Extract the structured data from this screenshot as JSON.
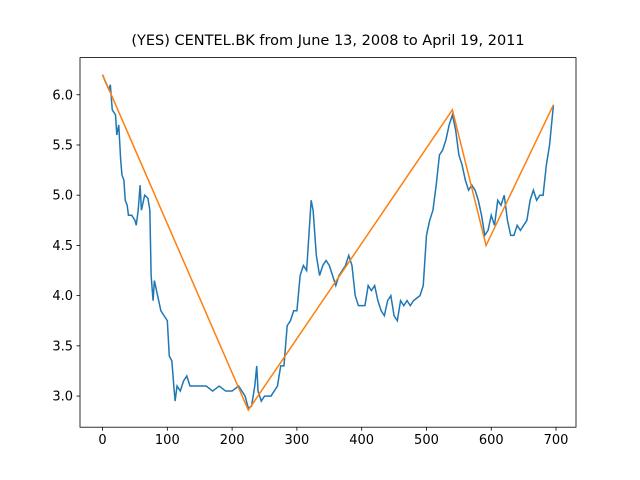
{
  "chart_data": {
    "type": "line",
    "title": "(YES) CENTEL.BK from June 13, 2008 to April 19, 2011",
    "xlim": [
      -34.8,
      730.8
    ],
    "ylim": [
      2.69,
      6.37
    ],
    "xticks": [
      0,
      100,
      200,
      300,
      400,
      500,
      600,
      700
    ],
    "yticks": [
      {
        "value": 3,
        "label": "3.0"
      },
      3.5,
      {
        "value": 4,
        "label": "4.0"
      },
      4.5,
      {
        "value": 5,
        "label": "5.0"
      },
      5.5,
      {
        "value": 6,
        "label": "6.0"
      }
    ],
    "series": [
      {
        "color": "#1f77b4",
        "x": [
          0,
          5,
          10,
          12,
          15,
          20,
          22,
          25,
          28,
          30,
          33,
          35,
          38,
          40,
          45,
          50,
          52,
          55,
          58,
          60,
          65,
          70,
          73,
          75,
          78,
          80,
          85,
          90,
          95,
          100,
          103,
          107,
          110,
          112,
          115,
          120,
          125,
          130,
          135,
          140,
          150,
          160,
          170,
          180,
          190,
          200,
          210,
          215,
          220,
          225,
          230,
          235,
          238,
          240,
          245,
          250,
          260,
          270,
          275,
          280,
          285,
          290,
          295,
          300,
          305,
          310,
          315,
          320,
          322,
          325,
          330,
          335,
          340,
          345,
          350,
          355,
          360,
          365,
          370,
          375,
          380,
          385,
          390,
          395,
          400,
          405,
          410,
          415,
          420,
          425,
          430,
          435,
          440,
          445,
          450,
          455,
          460,
          465,
          470,
          475,
          480,
          490,
          495,
          500,
          505,
          510,
          515,
          520,
          525,
          530,
          535,
          540,
          545,
          550,
          555,
          560,
          565,
          570,
          575,
          580,
          585,
          590,
          595,
          600,
          605,
          610,
          615,
          620,
          625,
          630,
          635,
          640,
          645,
          650,
          655,
          660,
          665,
          670,
          675,
          680,
          685,
          690,
          696
        ],
        "values": [
          6.2,
          6.12,
          6.05,
          6.1,
          5.85,
          5.8,
          5.6,
          5.7,
          5.35,
          5.2,
          5.15,
          4.95,
          4.9,
          4.8,
          4.8,
          4.75,
          4.7,
          4.85,
          5.1,
          4.85,
          5.0,
          4.97,
          4.85,
          4.2,
          3.95,
          4.15,
          4.0,
          3.85,
          3.8,
          3.75,
          3.4,
          3.35,
          3.1,
          2.95,
          3.1,
          3.05,
          3.15,
          3.2,
          3.1,
          3.1,
          3.1,
          3.1,
          3.05,
          3.1,
          3.05,
          3.05,
          3.1,
          3.05,
          3.0,
          2.88,
          2.9,
          3.1,
          3.3,
          3.05,
          2.95,
          3.0,
          3.0,
          3.1,
          3.3,
          3.3,
          3.7,
          3.75,
          3.85,
          3.85,
          4.2,
          4.3,
          4.25,
          4.75,
          4.95,
          4.85,
          4.4,
          4.2,
          4.3,
          4.35,
          4.3,
          4.2,
          4.1,
          4.2,
          4.25,
          4.3,
          4.4,
          4.3,
          4.0,
          3.9,
          3.9,
          3.9,
          4.1,
          4.05,
          4.1,
          3.95,
          3.85,
          3.8,
          3.95,
          4.0,
          3.8,
          3.75,
          3.95,
          3.9,
          3.95,
          3.9,
          3.95,
          4.0,
          4.1,
          4.6,
          4.75,
          4.85,
          5.1,
          5.4,
          5.45,
          5.55,
          5.7,
          5.8,
          5.65,
          5.4,
          5.3,
          5.15,
          5.05,
          5.1,
          5.05,
          4.95,
          4.8,
          4.6,
          4.65,
          4.8,
          4.7,
          4.95,
          4.9,
          5.0,
          4.75,
          4.6,
          4.6,
          4.7,
          4.65,
          4.7,
          4.75,
          4.95,
          5.05,
          4.95,
          5.0,
          5.0,
          5.3,
          5.5,
          5.9
        ]
      },
      {
        "color": "#ff7f0e",
        "x": [
          0,
          225,
          540,
          592,
          696
        ],
        "values": [
          6.2,
          2.86,
          5.85,
          4.5,
          5.9
        ]
      }
    ]
  }
}
